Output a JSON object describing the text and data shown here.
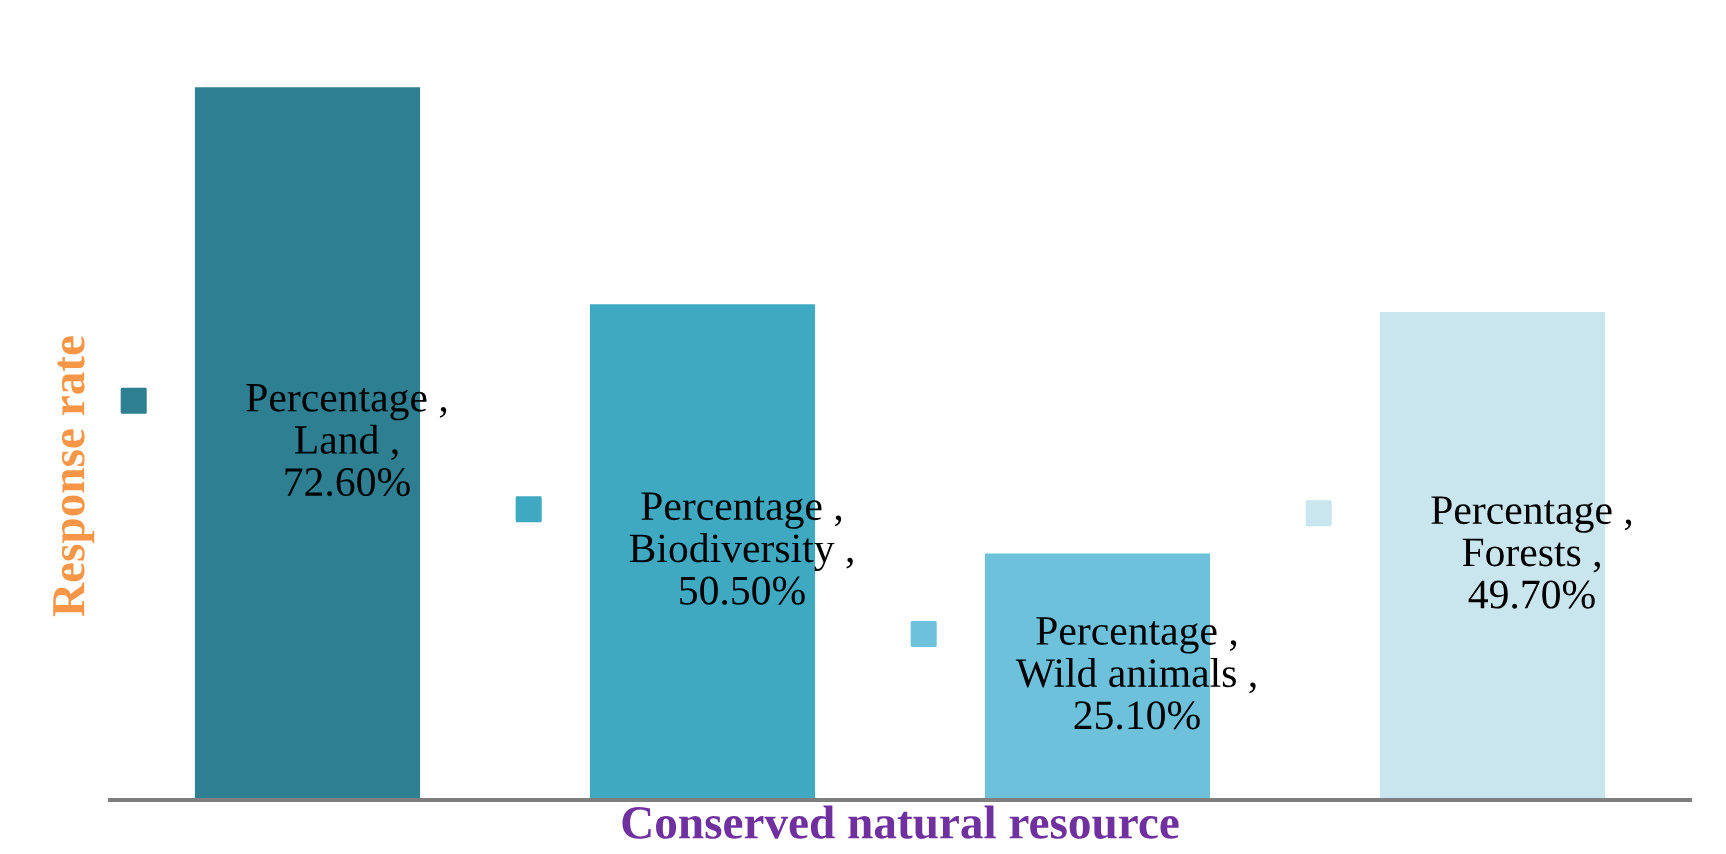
{
  "chart_data": {
    "type": "bar",
    "xlabel": "Conserved natural resource",
    "ylabel": "Response rate",
    "categories": [
      null,
      null,
      null,
      null
    ],
    "series": [
      {
        "values": [
          72.6,
          50.5,
          25.1,
          49.7
        ],
        "colors": [
          "#2f7f92",
          "#3fa9c2",
          "#6dc1da",
          "#c9e6ef"
        ],
        "value_labels": [
          "Percentage , Land , 72.60%",
          "Percentage , Biodiversity , 50.50%",
          "Percentage , Wild animals , 25.10%",
          "Percentage , Forests , 49.70%"
        ]
      }
    ]
  }
}
